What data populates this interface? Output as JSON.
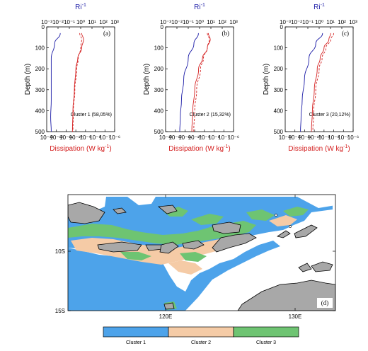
{
  "colors": {
    "ri": "#1a1aa6",
    "dissipation": "#d42020",
    "cluster1": "#4da3ea",
    "cluster2": "#f5cba6",
    "cluster3": "#6ec472",
    "land": "#a8a8a8"
  },
  "chart_data": [
    {
      "type": "line",
      "panel_label": "(a)",
      "annotation": "Cluster 1 (58,05%)",
      "ylabel": "Depth (m)",
      "top_axis_label": "Ri",
      "top_axis_exp": "-1",
      "bottom_axis_label": "Dissipation (W kg",
      "bottom_axis_exp": "-1",
      "bottom_axis_close": ")",
      "ylim": [
        500,
        0
      ],
      "top_xlim_log10": [
        -3,
        3
      ],
      "bottom_xlim_log10": [
        -13,
        -6
      ],
      "top_ticks": [
        "10⁻³",
        "10⁻²",
        "10⁻¹",
        "10⁰",
        "10¹",
        "10²",
        "10³"
      ],
      "bottom_ticks": [
        "10⁻¹³",
        "10⁻¹²",
        "10⁻¹¹",
        "10⁻¹⁰",
        "10⁻⁹",
        "10⁻⁸",
        "10⁻⁷",
        "10⁻⁶"
      ],
      "yticks": [
        "0",
        "100",
        "200",
        "300",
        "400",
        "500"
      ],
      "series": [
        {
          "style": "solid",
          "axis": "top",
          "color": "ri",
          "depth": [
            30,
            80,
            150,
            250,
            350,
            430,
            500
          ],
          "log10_value": [
            -1.8,
            -2.3,
            -2.6,
            -2.6,
            -2.6,
            -2.65,
            -2.6
          ]
        },
        {
          "style": "solid",
          "axis": "bottom",
          "color": "dissipation",
          "depth": [
            30,
            60,
            100,
            150,
            200,
            300,
            400,
            500
          ],
          "log10_value": [
            -9.4,
            -9.2,
            -9.4,
            -9.8,
            -10.0,
            -10.15,
            -10.3,
            -10.35
          ]
        },
        {
          "style": "dashed",
          "axis": "bottom",
          "color": "dissipation",
          "depth": [
            30,
            60,
            100,
            150,
            200,
            300,
            400,
            500
          ],
          "log10_value": [
            -9.6,
            -9.4,
            -9.5,
            -9.75,
            -9.9,
            -10.1,
            -10.25,
            -10.3
          ]
        }
      ]
    },
    {
      "type": "line",
      "panel_label": "(b)",
      "annotation": "Cluster 2 (15,32%)",
      "ylabel": "Depth (m)",
      "top_axis_label": "Ri",
      "top_axis_exp": "-1",
      "bottom_axis_label": "Dissipation (W kg",
      "bottom_axis_exp": "-1",
      "bottom_axis_close": ")",
      "ylim": [
        500,
        0
      ],
      "top_xlim_log10": [
        -3,
        3
      ],
      "bottom_xlim_log10": [
        -13,
        -6
      ],
      "top_ticks": [
        "10⁻³",
        "10⁻²",
        "10⁻¹",
        "10⁰",
        "10¹",
        "10²",
        "10³"
      ],
      "bottom_ticks": [
        "10⁻¹³",
        "10⁻¹²",
        "10⁻¹¹",
        "10⁻¹⁰",
        "10⁻⁹",
        "10⁻⁸",
        "10⁻⁷",
        "10⁻⁶"
      ],
      "yticks": [
        "0",
        "100",
        "200",
        "300",
        "400",
        "500"
      ],
      "series": [
        {
          "style": "solid",
          "axis": "top",
          "color": "ri",
          "depth": [
            30,
            80,
            150,
            250,
            350,
            430,
            500
          ],
          "log10_value": [
            -0.1,
            -0.5,
            -1.0,
            -1.4,
            -1.6,
            -1.7,
            -1.75
          ]
        },
        {
          "style": "solid",
          "axis": "bottom",
          "color": "dissipation",
          "depth": [
            30,
            60,
            100,
            150,
            200,
            300,
            400,
            500
          ],
          "log10_value": [
            -8.6,
            -8.4,
            -8.7,
            -9.2,
            -9.6,
            -10.0,
            -10.2,
            -10.3
          ]
        },
        {
          "style": "dashed",
          "axis": "bottom",
          "color": "dissipation",
          "depth": [
            30,
            60,
            100,
            150,
            200,
            300,
            400,
            500
          ],
          "log10_value": [
            -8.7,
            -8.5,
            -8.7,
            -9.1,
            -9.4,
            -9.8,
            -10.0,
            -10.1
          ]
        }
      ]
    },
    {
      "type": "line",
      "panel_label": "(c)",
      "annotation": "Cluster 3 (20,12%)",
      "ylabel": "Depth (m)",
      "top_axis_label": "Ri",
      "top_axis_exp": "-1",
      "bottom_axis_label": "Dissipation (W kg",
      "bottom_axis_exp": "-1",
      "bottom_axis_close": ")",
      "ylim": [
        500,
        0
      ],
      "top_xlim_log10": [
        -3,
        3
      ],
      "bottom_xlim_log10": [
        -13,
        -6
      ],
      "top_ticks": [
        "10⁻³",
        "10⁻²",
        "10⁻¹",
        "10⁰",
        "10¹",
        "10²",
        "10³"
      ],
      "bottom_ticks": [
        "10⁻¹³",
        "10⁻¹²",
        "10⁻¹¹",
        "10⁻¹⁰",
        "10⁻⁹",
        "10⁻⁸",
        "10⁻⁷",
        "10⁻⁶"
      ],
      "yticks": [
        "0",
        "100",
        "200",
        "300",
        "400",
        "500"
      ],
      "series": [
        {
          "style": "solid",
          "axis": "top",
          "color": "ri",
          "depth": [
            30,
            80,
            150,
            250,
            350,
            430,
            500
          ],
          "log10_value": [
            0.3,
            -0.3,
            -0.9,
            -1.3,
            -1.5,
            -1.6,
            -1.65
          ]
        },
        {
          "style": "solid",
          "axis": "bottom",
          "color": "dissipation",
          "depth": [
            30,
            60,
            100,
            150,
            200,
            300,
            400,
            500
          ],
          "log10_value": [
            -8.3,
            -8.5,
            -9.0,
            -9.4,
            -9.7,
            -10.0,
            -10.2,
            -10.3
          ]
        },
        {
          "style": "dashed",
          "axis": "bottom",
          "color": "dissipation",
          "depth": [
            30,
            60,
            100,
            150,
            200,
            300,
            400,
            500
          ],
          "log10_value": [
            -8.0,
            -8.3,
            -8.8,
            -9.2,
            -9.5,
            -9.85,
            -10.05,
            -10.15
          ]
        }
      ]
    },
    {
      "type": "heatmap",
      "panel_label": "(d)",
      "x_ticks": [
        "120E",
        "130E"
      ],
      "y_ticks": [
        "10S",
        "15S"
      ],
      "legend_entries": [
        "Cluster 1",
        "Cluster 2",
        "Cluster 3"
      ]
    }
  ]
}
